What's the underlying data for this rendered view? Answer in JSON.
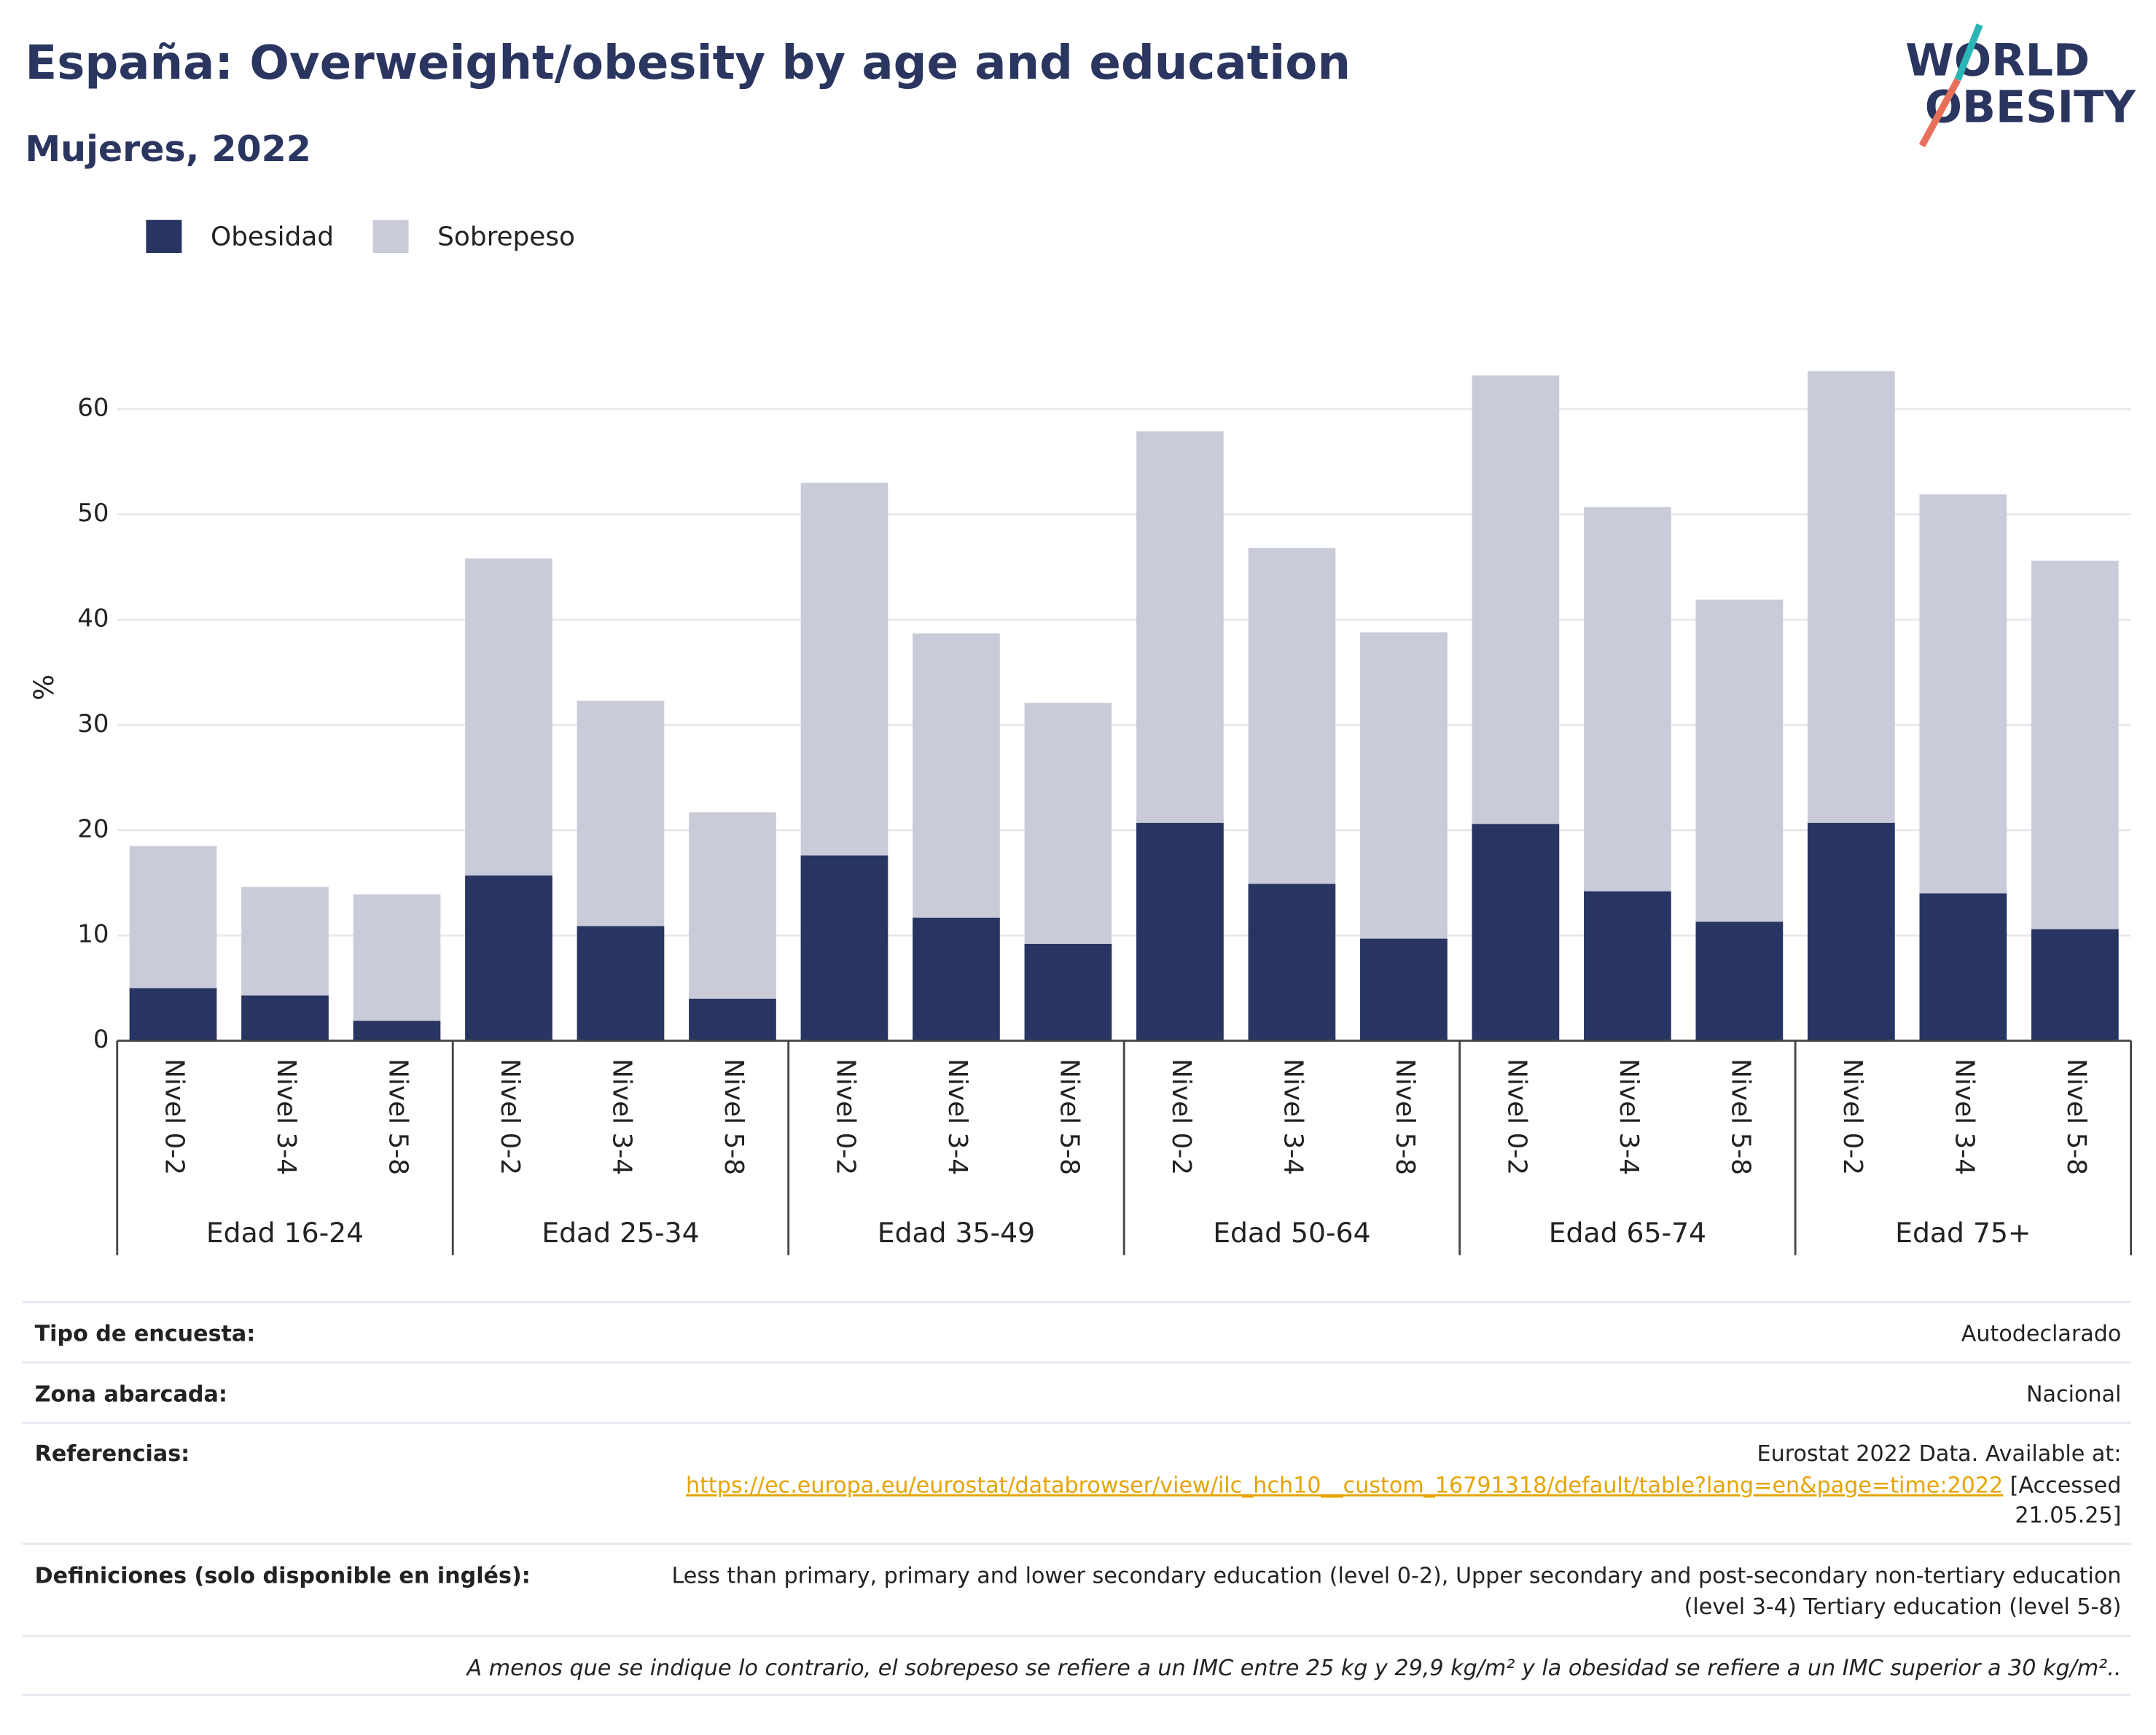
{
  "chart_data": {
    "type": "stacked_bar",
    "title": "España: Overweight/obesity by age and education",
    "subtitle": "Mujeres, 2022",
    "ylabel": "%",
    "categories": [
      "Nivel 0-2",
      "Nivel 3-4",
      "Nivel 5-8",
      "Nivel 0-2",
      "Nivel 3-4",
      "Nivel 5-8",
      "Nivel 0-2",
      "Nivel 3-4",
      "Nivel 5-8",
      "Nivel 0-2",
      "Nivel 3-4",
      "Nivel 5-8",
      "Nivel 0-2",
      "Nivel 3-4",
      "Nivel 5-8",
      "Nivel 0-2",
      "Nivel 3-4",
      "Nivel 5-8"
    ],
    "groups": [
      "Edad 16-24",
      "Edad 25-34",
      "Edad 35-49",
      "Edad 50-64",
      "Edad 65-74",
      "Edad 75+"
    ],
    "series": [
      {
        "name": "Obesidad",
        "color": "#283562",
        "values": [
          5.0,
          4.3,
          1.9,
          15.7,
          10.9,
          4.0,
          17.6,
          11.7,
          9.2,
          20.7,
          14.9,
          9.7,
          20.6,
          14.2,
          11.3,
          20.7,
          14.0,
          10.6
        ]
      },
      {
        "name": "Sobrepeso",
        "color": "#cacbd8",
        "values": [
          13.5,
          10.3,
          12.0,
          30.1,
          21.4,
          17.7,
          35.4,
          27.0,
          22.9,
          37.2,
          31.9,
          29.1,
          42.6,
          36.5,
          30.6,
          42.9,
          37.9,
          35.0
        ]
      }
    ],
    "ylim": [
      0,
      67
    ],
    "yticks": [
      0,
      10,
      20,
      30,
      40,
      50,
      60
    ],
    "grid": true
  },
  "logo": {
    "line1": "WORLD",
    "line2": "OBESITY"
  },
  "table": {
    "rows": [
      {
        "label": "Tipo de encuesta:",
        "value_lines": [
          "Autodeclarado"
        ]
      },
      {
        "label": "Zona abarcada:",
        "value_lines": [
          "Nacional"
        ]
      },
      {
        "label": "Referencias:",
        "value_lines": [
          "Eurostat 2022 Data. Available at:"
        ],
        "link": "https://ec.europa.eu/eurostat/databrowser/view/ilc_hch10__custom_16791318/default/table?lang=en&page=time:2022",
        "after_link": "[Accessed",
        "last_line": "21.05.25]"
      },
      {
        "label": "Definiciones (solo disponible en inglés):",
        "value_lines": [
          "Less than primary, primary and lower secondary education (level 0-2), Upper secondary and post-secondary non-tertiary education",
          "(level 3-4) Tertiary education (level 5-8)"
        ]
      }
    ],
    "footnote": "A menos que se indique lo contrario, el sobrepeso se refiere a un IMC entre 25 kg y 29,9 kg/m² y la obesidad se refiere a un IMC superior a 30 kg/m².."
  }
}
